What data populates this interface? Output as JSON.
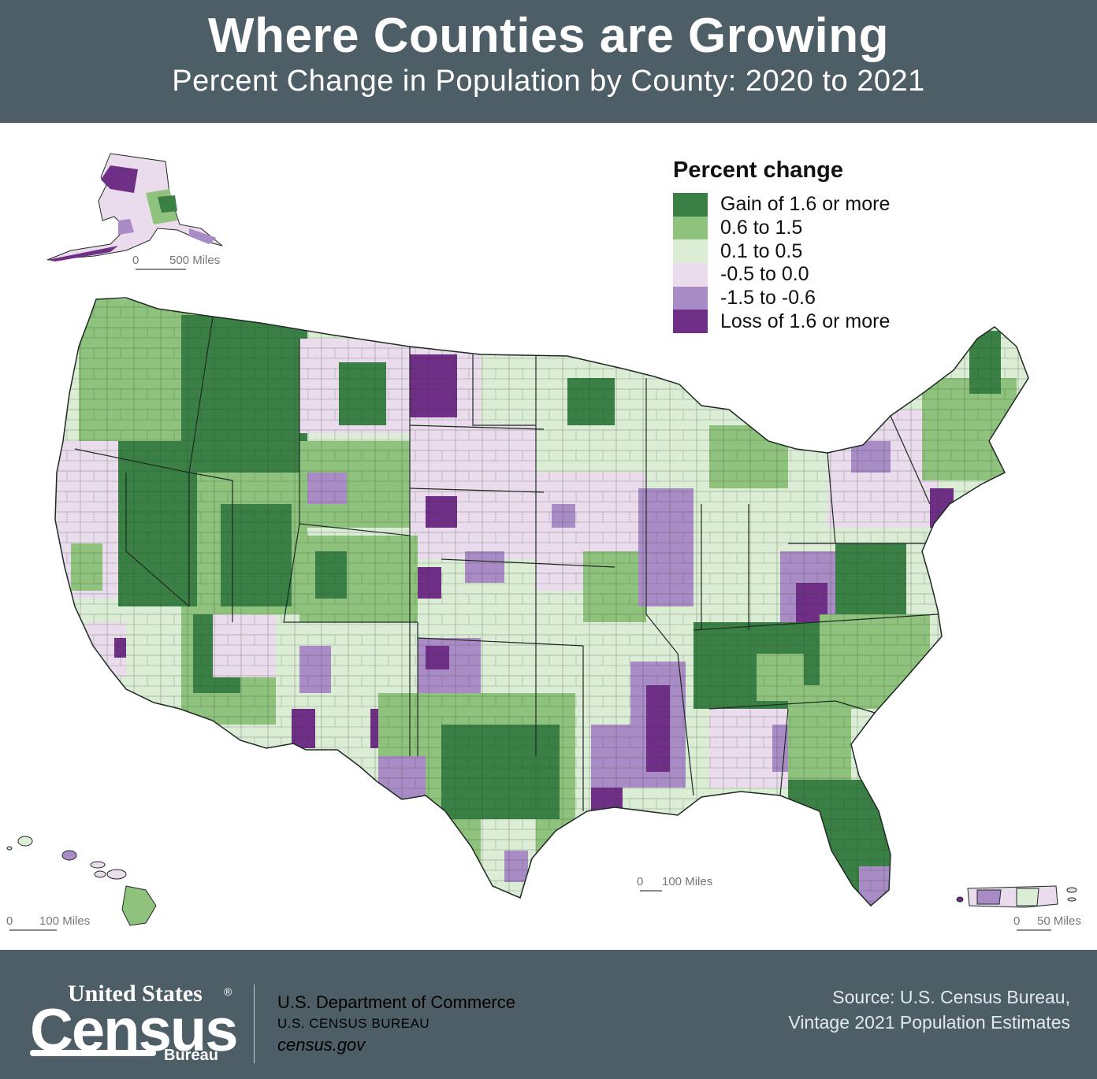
{
  "header": {
    "title": "Where Counties are Growing",
    "subtitle": "Percent Change in Population by County: 2020 to 2021"
  },
  "legend": {
    "title": "Percent change",
    "items": [
      {
        "label": "Gain of 1.6 or more",
        "color": "#3a8045"
      },
      {
        "label": "0.6 to 1.5",
        "color": "#8fc27d"
      },
      {
        "label": "0.1 to 0.5",
        "color": "#dcedd6"
      },
      {
        "label": "-0.5 to 0.0",
        "color": "#eadcec"
      },
      {
        "label": "-1.5 to -0.6",
        "color": "#a98cc5"
      },
      {
        "label": "Loss of 1.6 or more",
        "color": "#6f2f86"
      }
    ]
  },
  "scales": {
    "alaska": {
      "zero": "0",
      "label": "500 Miles"
    },
    "conus": {
      "zero": "0",
      "label": "100 Miles"
    },
    "hawaii": {
      "zero": "0",
      "label": "100 Miles"
    },
    "puerto_rico": {
      "zero": "0",
      "label": "50 Miles"
    }
  },
  "footer": {
    "logo_united_states": "United States",
    "logo_registered": "®",
    "logo_census": "Census",
    "logo_bureau": "Bureau",
    "department": "U.S. Department of Commerce",
    "bureau": "U.S. CENSUS BUREAU",
    "website": "census.gov",
    "source_line1": "Source: U.S. Census Bureau,",
    "source_line2": "Vintage 2021 Population Estimates"
  }
}
